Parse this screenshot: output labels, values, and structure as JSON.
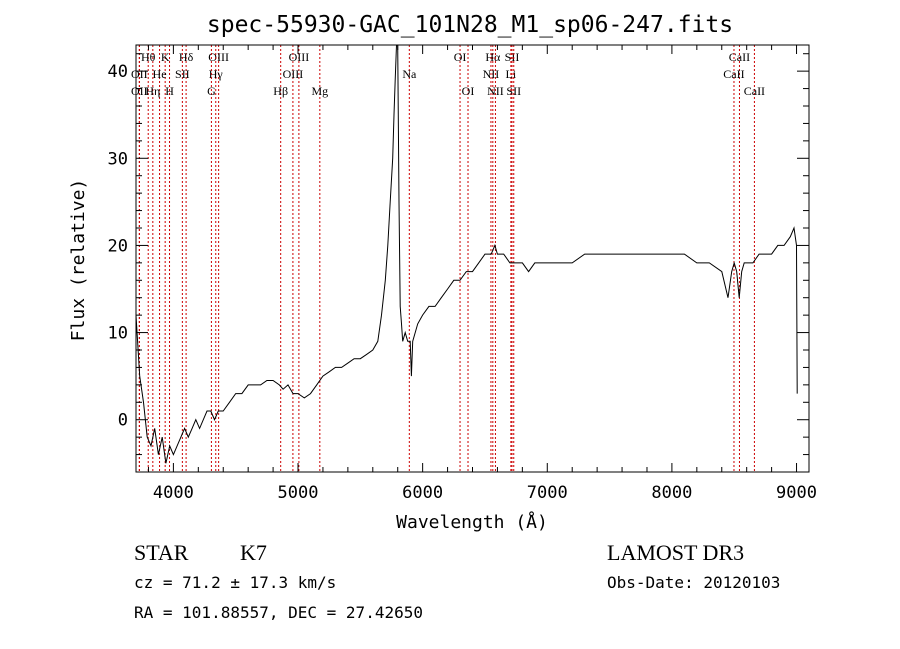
{
  "chart_data": {
    "type": "line",
    "title": "spec-55930-GAC_101N28_M1_sp06-247.fits",
    "xlabel": "Wavelength (Å)",
    "ylabel": "Flux (relative)",
    "xlim": [
      3700,
      9100
    ],
    "ylim": [
      -6,
      43
    ],
    "xticks": [
      4000,
      5000,
      6000,
      7000,
      8000,
      9000
    ],
    "xtick_labels": [
      "4000",
      "5000",
      "6000",
      "7000",
      "8000",
      "9000"
    ],
    "yticks": [
      0,
      10,
      20,
      30,
      40
    ],
    "ytick_labels": [
      "0",
      "10",
      "20",
      "30",
      "40"
    ],
    "grid": false,
    "series": [
      {
        "name": "flux",
        "x": [
          3700,
          3730,
          3760,
          3790,
          3820,
          3850,
          3880,
          3910,
          3940,
          3970,
          4000,
          4030,
          4060,
          4090,
          4120,
          4150,
          4180,
          4210,
          4240,
          4270,
          4300,
          4330,
          4360,
          4400,
          4450,
          4500,
          4550,
          4600,
          4650,
          4700,
          4750,
          4800,
          4850,
          4880,
          4920,
          4960,
          5000,
          5050,
          5100,
          5150,
          5200,
          5250,
          5300,
          5350,
          5400,
          5450,
          5500,
          5550,
          5600,
          5640,
          5670,
          5700,
          5720,
          5740,
          5760,
          5770,
          5780,
          5790,
          5800,
          5810,
          5820,
          5830,
          5840,
          5860,
          5880,
          5900,
          5910,
          5920,
          5940,
          5960,
          6000,
          6050,
          6100,
          6150,
          6200,
          6250,
          6300,
          6350,
          6400,
          6450,
          6500,
          6550,
          6580,
          6600,
          6650,
          6700,
          6750,
          6800,
          6850,
          6900,
          7000,
          7100,
          7200,
          7300,
          7400,
          7500,
          7600,
          7700,
          7800,
          7900,
          8000,
          8100,
          8200,
          8300,
          8400,
          8450,
          8480,
          8500,
          8520,
          8540,
          8560,
          8580,
          8600,
          8650,
          8700,
          8750,
          8800,
          8850,
          8900,
          8950,
          8980,
          9000,
          9005
        ],
        "y": [
          12,
          5,
          2,
          -2,
          -3,
          -1,
          -4,
          -2,
          -5,
          -3,
          -4,
          -3,
          -2,
          -1,
          -2,
          -1,
          0,
          -1,
          0,
          1,
          1,
          0,
          1,
          1,
          2,
          3,
          3,
          4,
          4,
          4,
          4.5,
          4.5,
          4,
          3.5,
          4,
          3,
          3,
          2.5,
          3,
          4,
          5,
          5.5,
          6,
          6,
          6.5,
          7,
          7,
          7.5,
          8,
          9,
          12,
          16,
          20,
          25,
          30,
          35,
          39,
          43,
          43,
          25,
          13,
          11,
          9,
          10,
          9,
          9,
          5,
          9,
          10,
          11,
          12,
          13,
          13,
          14,
          15,
          16,
          16,
          17,
          17,
          18,
          19,
          19,
          20,
          19,
          19,
          18,
          18,
          18,
          17,
          18,
          18,
          18,
          18,
          19,
          19,
          19,
          19,
          19,
          19,
          19,
          19,
          19,
          18,
          18,
          17,
          14,
          17,
          18,
          17,
          14,
          17,
          18,
          18,
          18,
          19,
          19,
          19,
          20,
          20,
          21,
          22,
          20,
          3
        ]
      }
    ],
    "line_markers": [
      {
        "label": "Hθ",
        "wavelength": 3798,
        "row": 1
      },
      {
        "label": "OII",
        "wavelength": 3727,
        "row": 2
      },
      {
        "label": "OII",
        "wavelength": 3727,
        "row": 3
      },
      {
        "label": "K",
        "wavelength": 3934,
        "row": 1
      },
      {
        "label": "He",
        "wavelength": 3889,
        "row": 2
      },
      {
        "label": "Hη",
        "wavelength": 3835,
        "row": 3
      },
      {
        "label": "Hδ",
        "wavelength": 4102,
        "row": 1
      },
      {
        "label": "SII",
        "wavelength": 4072,
        "row": 2
      },
      {
        "label": "H",
        "wavelength": 3969,
        "row": 3
      },
      {
        "label": "OIII",
        "wavelength": 4363,
        "row": 1
      },
      {
        "label": "Hγ",
        "wavelength": 4340,
        "row": 2
      },
      {
        "label": "G",
        "wavelength": 4305,
        "row": 3
      },
      {
        "label": "OIII",
        "wavelength": 5007,
        "row": 1
      },
      {
        "label": "OIII",
        "wavelength": 4959,
        "row": 2
      },
      {
        "label": "Hβ",
        "wavelength": 4861,
        "row": 3
      },
      {
        "label": "Mg",
        "wavelength": 5175,
        "row": 3
      },
      {
        "label": "Na",
        "wavelength": 5893,
        "row": 2
      },
      {
        "label": "OI",
        "wavelength": 6300,
        "row": 1
      },
      {
        "label": "OI",
        "wavelength": 6364,
        "row": 3
      },
      {
        "label": "Hα",
        "wavelength": 6563,
        "row": 1
      },
      {
        "label": "NII",
        "wavelength": 6548,
        "row": 2
      },
      {
        "label": "NII",
        "wavelength": 6584,
        "row": 3
      },
      {
        "label": "SII",
        "wavelength": 6717,
        "row": 1
      },
      {
        "label": "Li",
        "wavelength": 6708,
        "row": 2
      },
      {
        "label": "SII",
        "wavelength": 6731,
        "row": 3
      },
      {
        "label": "CaII",
        "wavelength": 8542,
        "row": 1
      },
      {
        "label": "CaII",
        "wavelength": 8498,
        "row": 2
      },
      {
        "label": "CaII",
        "wavelength": 8662,
        "row": 3
      }
    ],
    "marker_color": "#cc0000"
  },
  "info": {
    "class": "STAR",
    "subclass": "K7",
    "survey": "LAMOST DR3",
    "cz": "cz = 71.2 ± 17.3 km/s",
    "obs_date": "Obs-Date: 20120103",
    "coords": "RA = 101.88557, DEC =  27.42650"
  }
}
